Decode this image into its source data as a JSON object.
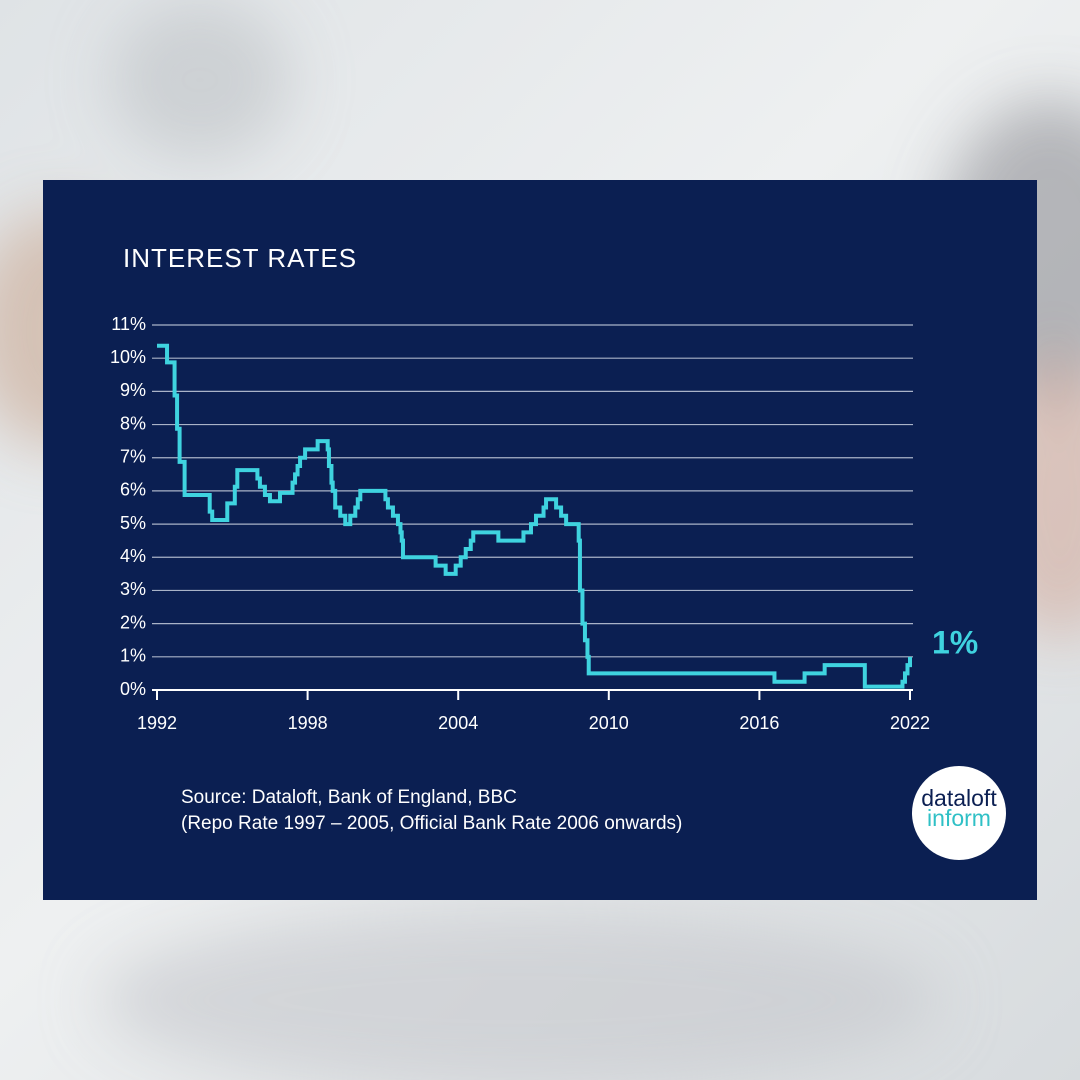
{
  "chart_data": {
    "type": "step",
    "title": "INTEREST RATES",
    "source": "Source: Dataloft, Bank of England, BBC",
    "note": "(Repo Rate 1997 – 2005, Official Bank Rate 2006 onwards)",
    "annotation": "1%",
    "logo": {
      "top": "dataloft",
      "bottom": "inform"
    },
    "color": "#3fd3df",
    "grid": true,
    "xlim": [
      1992,
      2022
    ],
    "xticks": [
      1992,
      1998,
      2004,
      2010,
      2016,
      2022
    ],
    "ylim": [
      0,
      11
    ],
    "yticks": [
      {
        "value": 0,
        "label": "0%"
      },
      {
        "value": 1,
        "label": "1%"
      },
      {
        "value": 2,
        "label": "2%"
      },
      {
        "value": 3,
        "label": "3%"
      },
      {
        "value": 4,
        "label": "4%"
      },
      {
        "value": 5,
        "label": "5%"
      },
      {
        "value": 6,
        "label": "6%"
      },
      {
        "value": 7,
        "label": "7%"
      },
      {
        "value": 8,
        "label": "8%"
      },
      {
        "value": 9,
        "label": "9%"
      },
      {
        "value": 10,
        "label": "10%"
      },
      {
        "value": 11,
        "label": "11%"
      }
    ],
    "x": [
      1992.0,
      1992.4,
      1992.7,
      1992.8,
      1992.9,
      1993.1,
      1994.1,
      1994.2,
      1994.8,
      1995.1,
      1995.2,
      1996.0,
      1996.1,
      1996.3,
      1996.5,
      1996.9,
      1997.4,
      1997.5,
      1997.6,
      1997.7,
      1997.9,
      1998.4,
      1998.8,
      1998.85,
      1998.95,
      1999.0,
      1999.1,
      1999.3,
      1999.5,
      1999.7,
      1999.9,
      2000.0,
      2000.1,
      2001.1,
      2001.2,
      2001.4,
      2001.6,
      2001.7,
      2001.75,
      2001.8,
      2003.1,
      2003.5,
      2003.9,
      2004.1,
      2004.3,
      2004.5,
      2004.6,
      2005.6,
      2006.6,
      2006.9,
      2007.1,
      2007.4,
      2007.5,
      2007.9,
      2008.1,
      2008.3,
      2008.8,
      2008.85,
      2008.95,
      2009.05,
      2009.15,
      2009.2,
      2016.6,
      2017.8,
      2018.6,
      2020.2,
      2021.7,
      2021.8,
      2021.9,
      2022.0
    ],
    "values": [
      10.375,
      9.875,
      8.875,
      7.875,
      6.875,
      5.875,
      5.375,
      5.125,
      5.625,
      6.125,
      6.625,
      6.375,
      6.125,
      5.875,
      5.69,
      5.94,
      6.25,
      6.5,
      6.75,
      7.0,
      7.25,
      7.5,
      7.25,
      6.75,
      6.25,
      6.0,
      5.5,
      5.25,
      5.0,
      5.25,
      5.5,
      5.75,
      6.0,
      5.75,
      5.5,
      5.25,
      5.0,
      4.75,
      4.5,
      4.0,
      3.75,
      3.5,
      3.75,
      4.0,
      4.25,
      4.5,
      4.75,
      4.5,
      4.75,
      5.0,
      5.25,
      5.5,
      5.75,
      5.5,
      5.25,
      5.0,
      4.5,
      3.0,
      2.0,
      1.5,
      1.0,
      0.5,
      0.25,
      0.5,
      0.75,
      0.1,
      0.25,
      0.5,
      0.75,
      1.0
    ]
  }
}
